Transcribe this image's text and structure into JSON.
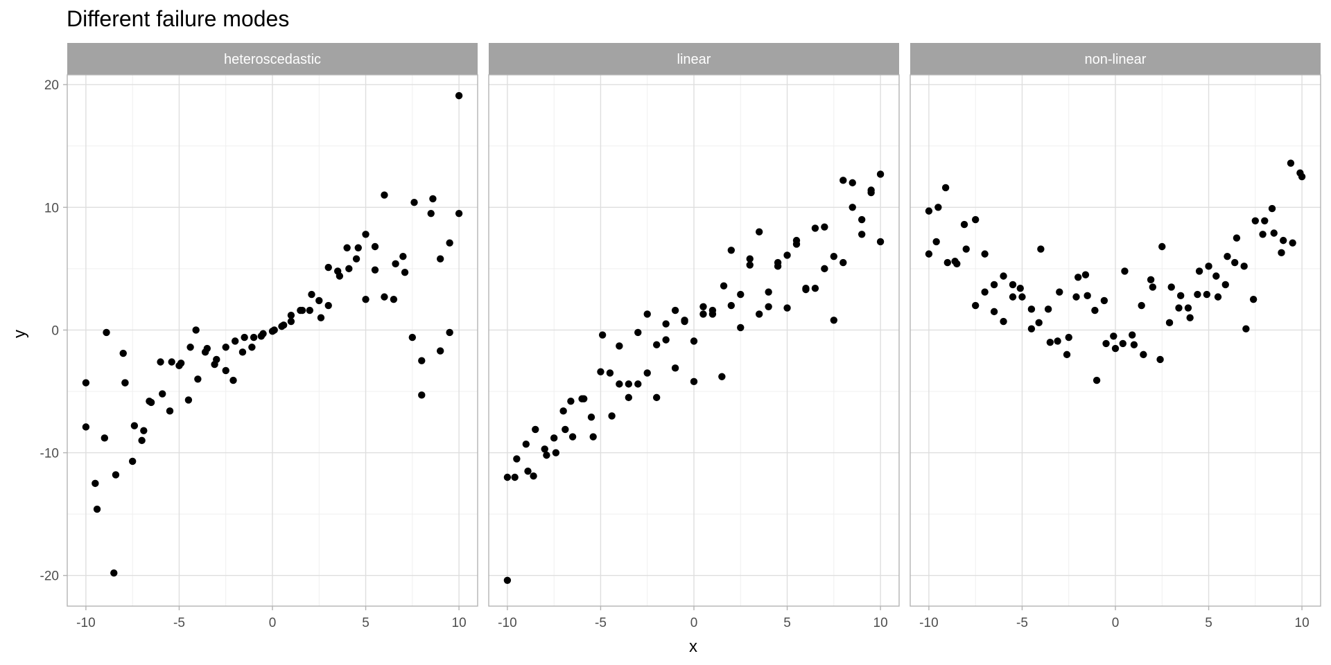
{
  "chart_data": {
    "type": "scatter",
    "title": "Different failure modes",
    "xlabel": "x",
    "ylabel": "y",
    "xlim": [
      -11,
      11
    ],
    "ylim": [
      -22.5,
      20.8
    ],
    "x_ticks": [
      -10,
      -5,
      0,
      5,
      10
    ],
    "y_ticks": [
      -20,
      -10,
      0,
      10,
      20
    ],
    "grid": true,
    "colors": {
      "point": "#000000",
      "strip": "#a3a3a3",
      "strip_text": "#ffffff",
      "grid_major": "#dedede",
      "grid_minor": "#efefef",
      "panel_border": "#b3b3b3",
      "tick_text": "#4d4d4d"
    },
    "panels": [
      {
        "name": "heteroscedastic",
        "x": [
          -10,
          -10,
          -9.5,
          -9.4,
          -9.0,
          -8.9,
          -8.5,
          -8.4,
          -8.0,
          -7.9,
          -7.9,
          -7.5,
          -7.4,
          -7.0,
          -6.9,
          -6.6,
          -6.5,
          -6.0,
          -5.9,
          -5.5,
          -5.4,
          -5.0,
          -4.9,
          -4.5,
          -4.4,
          -4.1,
          -4.0,
          -3.6,
          -3.5,
          -3.1,
          -3.0,
          -2.5,
          -2.5,
          -2.1,
          -2.0,
          -1.6,
          -1.5,
          -1.1,
          -1.0,
          -0.6,
          -0.5,
          0.0,
          0.1,
          0.5,
          0.6,
          1.0,
          1.0,
          1.5,
          1.6,
          2.0,
          2.1,
          2.5,
          2.6,
          3.0,
          3.0,
          3.5,
          3.6,
          4.0,
          4.1,
          4.5,
          4.6,
          5.0,
          5.0,
          5.5,
          5.5,
          6.0,
          6.0,
          6.5,
          6.6,
          7.0,
          7.1,
          7.5,
          7.6,
          8.0,
          8.0,
          8.5,
          8.6,
          9.0,
          9.0,
          9.5,
          9.5,
          10.0,
          10.0
        ],
        "y": [
          -7.9,
          -4.3,
          -12.5,
          -14.6,
          -8.8,
          -0.2,
          -19.8,
          -11.8,
          -1.9,
          -4.3,
          -4.3,
          -10.7,
          -7.8,
          -9.0,
          -8.2,
          -5.8,
          -5.9,
          -2.6,
          -5.2,
          -6.6,
          -2.6,
          -2.9,
          -2.7,
          -5.7,
          -1.4,
          0.0,
          -4.0,
          -1.8,
          -1.5,
          -2.8,
          -2.4,
          -1.4,
          -3.3,
          -4.1,
          -0.9,
          -1.8,
          -0.6,
          -1.4,
          -0.6,
          -0.5,
          -0.3,
          -0.1,
          0.0,
          0.3,
          0.4,
          0.7,
          1.2,
          1.6,
          1.6,
          1.6,
          2.9,
          2.4,
          1.0,
          2.0,
          5.1,
          4.8,
          4.4,
          6.7,
          5.0,
          5.8,
          6.7,
          7.8,
          2.5,
          6.8,
          4.9,
          11.0,
          2.7,
          2.5,
          5.4,
          6.0,
          4.7,
          -0.6,
          10.4,
          -2.5,
          -5.3,
          9.5,
          10.7,
          5.8,
          -1.7,
          7.1,
          -0.2,
          19.1,
          9.5
        ]
      },
      {
        "name": "linear",
        "x": [
          -10,
          -10,
          -9.6,
          -9.5,
          -9.0,
          -8.9,
          -8.6,
          -8.5,
          -8.0,
          -7.9,
          -7.5,
          -7.4,
          -7.0,
          -6.9,
          -6.6,
          -6.5,
          -6.0,
          -5.9,
          -5.5,
          -5.4,
          -5.0,
          -4.9,
          -4.5,
          -4.4,
          -4.0,
          -4.0,
          -3.5,
          -3.5,
          -3.0,
          -3.0,
          -2.5,
          -2.5,
          -2.0,
          -2.0,
          -1.5,
          -1.5,
          -1.0,
          -1.0,
          -0.5,
          -0.5,
          0.0,
          0.0,
          0.5,
          0.5,
          1.0,
          1.0,
          1.5,
          1.6,
          2.0,
          2.0,
          2.5,
          2.5,
          3.0,
          3.0,
          3.5,
          3.5,
          4.0,
          4.0,
          4.5,
          4.5,
          5.0,
          5.0,
          5.5,
          5.5,
          6.0,
          6.0,
          6.5,
          6.5,
          7.0,
          7.0,
          7.5,
          7.5,
          8.0,
          8.0,
          8.5,
          8.5,
          9.0,
          9.0,
          9.5,
          9.5,
          10.0,
          10.0
        ],
        "y": [
          -20.4,
          -12.0,
          -12.0,
          -10.5,
          -9.3,
          -11.5,
          -11.9,
          -8.1,
          -9.7,
          -10.2,
          -8.8,
          -10.0,
          -6.6,
          -8.1,
          -5.8,
          -8.7,
          -5.6,
          -5.6,
          -7.1,
          -8.7,
          -3.4,
          -0.4,
          -3.5,
          -7.0,
          -4.4,
          -1.3,
          -4.4,
          -5.5,
          -4.4,
          -0.2,
          -3.5,
          1.3,
          -1.2,
          -5.5,
          -0.8,
          0.5,
          -3.1,
          1.6,
          0.8,
          0.7,
          -0.9,
          -4.2,
          1.9,
          1.3,
          1.3,
          1.6,
          -3.8,
          3.6,
          2.0,
          6.5,
          0.2,
          2.9,
          5.8,
          5.3,
          8.0,
          1.3,
          3.1,
          1.9,
          5.2,
          5.5,
          6.1,
          1.8,
          7.3,
          7.0,
          3.3,
          3.4,
          8.3,
          3.4,
          8.4,
          5.0,
          6.0,
          0.8,
          12.2,
          5.5,
          12.0,
          10.0,
          9.0,
          7.8,
          11.4,
          11.2,
          12.7,
          7.2
        ]
      },
      {
        "name": "non-linear",
        "x": [
          -10,
          -10,
          -9.6,
          -9.5,
          -9.1,
          -9.0,
          -8.6,
          -8.5,
          -8.1,
          -8.0,
          -7.5,
          -7.5,
          -7.0,
          -7.0,
          -6.5,
          -6.5,
          -6.0,
          -6.0,
          -5.5,
          -5.5,
          -5.1,
          -5.0,
          -4.5,
          -4.5,
          -4.1,
          -4.0,
          -3.6,
          -3.5,
          -3.1,
          -3.0,
          -2.6,
          -2.5,
          -2.1,
          -2.0,
          -1.6,
          -1.5,
          -1.1,
          -1.0,
          -0.6,
          -0.5,
          -0.1,
          0.0,
          0.4,
          0.5,
          0.9,
          1.0,
          1.4,
          1.5,
          1.9,
          2.0,
          2.4,
          2.5,
          2.9,
          3.0,
          3.4,
          3.5,
          3.9,
          4.0,
          4.4,
          4.5,
          4.9,
          5.0,
          5.4,
          5.5,
          5.9,
          6.0,
          6.4,
          6.5,
          6.9,
          7.0,
          7.4,
          7.5,
          7.9,
          8.0,
          8.4,
          8.5,
          8.9,
          9.0,
          9.4,
          9.5,
          9.9,
          10.0
        ],
        "y": [
          9.7,
          6.2,
          7.2,
          10.0,
          11.6,
          5.5,
          5.6,
          5.4,
          8.6,
          6.6,
          2.0,
          9.0,
          3.1,
          6.2,
          1.5,
          3.7,
          4.4,
          0.7,
          3.7,
          2.7,
          3.4,
          2.7,
          1.7,
          0.1,
          0.6,
          6.6,
          1.7,
          -1.0,
          -0.9,
          3.1,
          -2.0,
          -0.6,
          2.7,
          4.3,
          4.5,
          2.8,
          1.6,
          -4.1,
          2.4,
          -1.1,
          -0.5,
          -1.5,
          -1.1,
          4.8,
          -0.4,
          -1.2,
          2.0,
          -2.0,
          4.1,
          3.5,
          -2.4,
          6.8,
          0.6,
          3.5,
          1.8,
          2.8,
          1.8,
          1.0,
          2.9,
          4.8,
          2.9,
          5.2,
          4.4,
          2.7,
          3.7,
          6.0,
          5.5,
          7.5,
          5.2,
          0.1,
          2.5,
          8.9,
          7.8,
          8.9,
          9.9,
          7.9,
          6.3,
          7.3,
          13.6,
          7.1,
          12.8,
          12.5
        ]
      }
    ]
  }
}
